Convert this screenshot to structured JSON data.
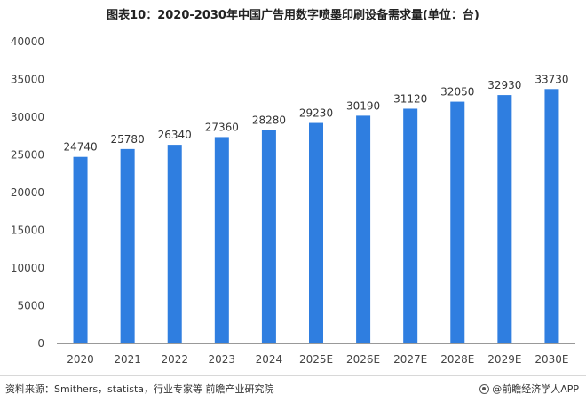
{
  "title": "图表10：2020-2030年中国广告用数字喷墨印刷设备需求量(单位：台)",
  "source": "资料来源：Smithers，statista，行业专家等 前瞻产业研究院",
  "brand": "@前瞻经济学人APP",
  "colors": {
    "bar": "#2f7ee0",
    "axis": "#999999"
  },
  "chart_data": {
    "type": "bar",
    "title": "图表10：2020-2030年中国广告用数字喷墨印刷设备需求量(单位：台)",
    "xlabel": "",
    "ylabel": "",
    "categories": [
      "2020",
      "2021",
      "2022",
      "2023",
      "2024",
      "2025E",
      "2026E",
      "2027E",
      "2028E",
      "2029E",
      "2030E"
    ],
    "values": [
      24740,
      25780,
      26340,
      27360,
      28280,
      29230,
      30190,
      31120,
      32050,
      32930,
      33730
    ],
    "ylim": [
      0,
      40000
    ],
    "yticks": [
      0,
      5000,
      10000,
      15000,
      20000,
      25000,
      30000,
      35000,
      40000
    ],
    "grid": false,
    "legend": "none",
    "data_labels": true
  }
}
